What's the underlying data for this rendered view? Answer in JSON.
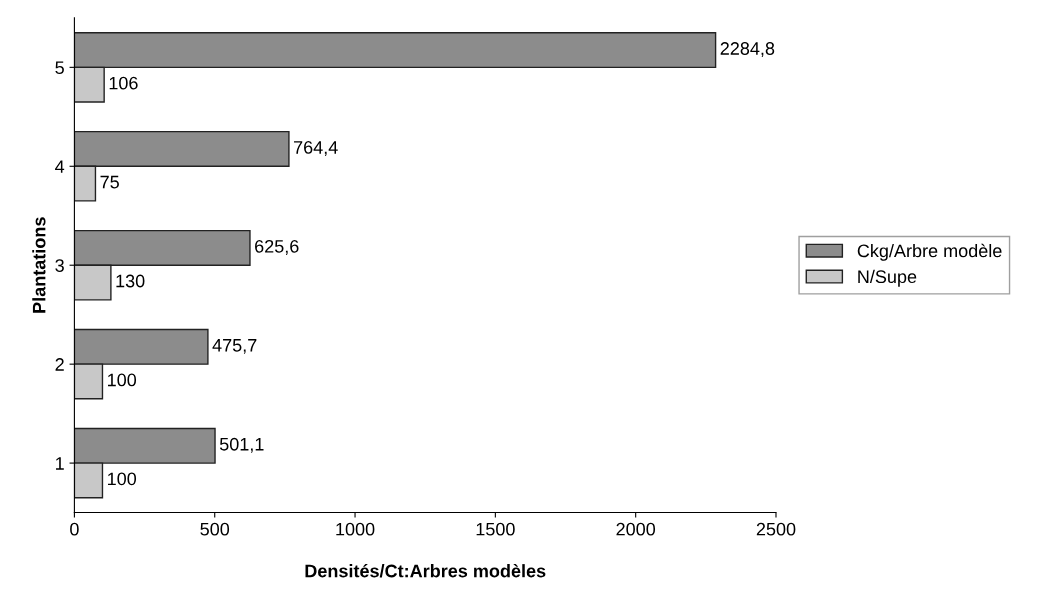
{
  "chart_data": {
    "type": "bar",
    "orientation": "horizontal",
    "ylabel": "Plantations",
    "xlabel": "Densités/Ct:Arbres modèles",
    "categories": [
      "5",
      "4",
      "3",
      "2",
      "1"
    ],
    "series": [
      {
        "name": "Ckg/Arbre modèle",
        "color": "#8c8c8c",
        "values": [
          2284.8,
          764.4,
          625.6,
          475.7,
          501.1
        ],
        "value_labels": [
          "2284,8",
          "764,4",
          "625,6",
          "475,7",
          "501,1"
        ]
      },
      {
        "name": "N/Supe",
        "color": "#c8c8c8",
        "values": [
          106,
          75,
          130,
          100,
          100
        ],
        "value_labels": [
          "106",
          "75",
          "130",
          "100",
          "100"
        ]
      }
    ],
    "xlim": [
      0,
      2500
    ],
    "xticks": [
      0,
      500,
      1000,
      1500,
      2000,
      2500
    ],
    "grid": false,
    "legend": "right"
  }
}
